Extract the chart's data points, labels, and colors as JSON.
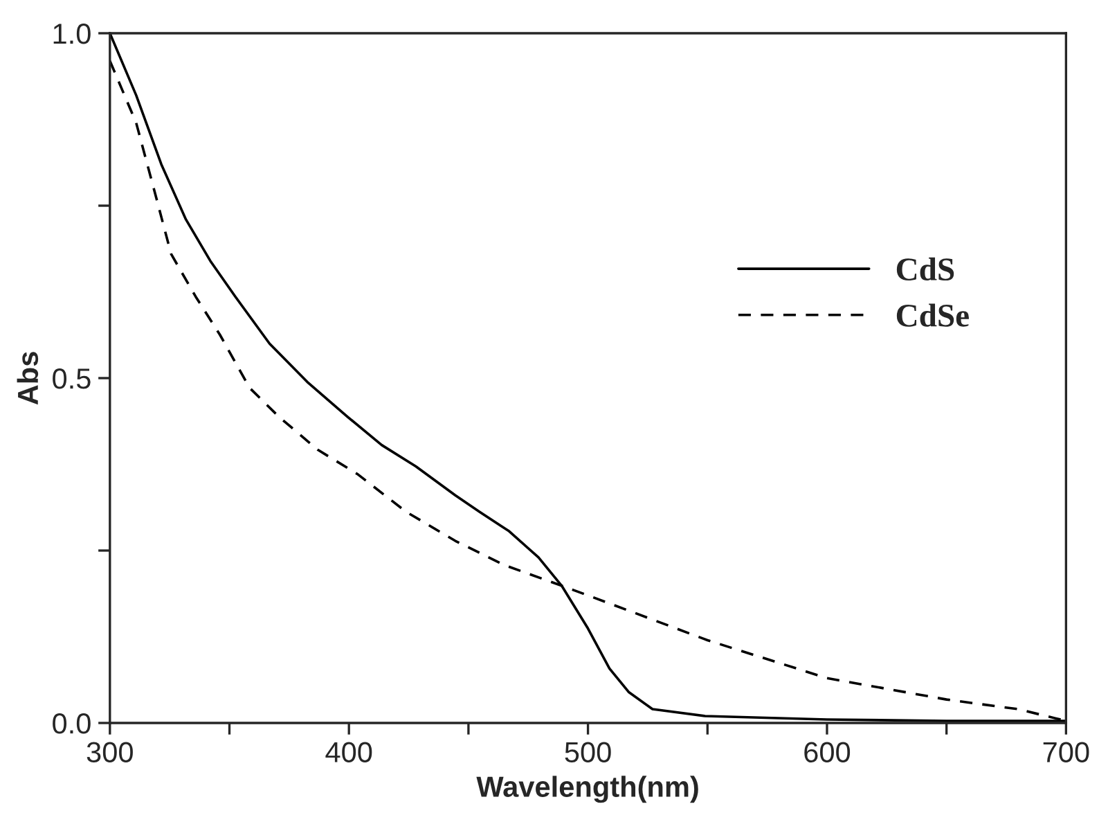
{
  "chart_data": {
    "type": "line",
    "xlabel": "Wavelength(nm)",
    "ylabel": "Abs",
    "xlim": [
      300,
      700
    ],
    "ylim": [
      0,
      1.0
    ],
    "xticks": [
      300,
      {
        "value": 350,
        "label": null
      },
      400,
      {
        "value": 450,
        "label": null
      },
      500,
      {
        "value": 550,
        "label": null
      },
      600,
      {
        "value": 650,
        "label": null
      },
      700
    ],
    "yticks": [
      {
        "value": 0,
        "label": "0.0"
      },
      {
        "value": 0.25,
        "label": null
      },
      0.5,
      {
        "value": 0.75,
        "label": null
      },
      {
        "value": 1.0,
        "label": "1.0"
      }
    ],
    "legend": "right",
    "grid": false,
    "series": [
      {
        "name": "CdS",
        "color": "#000000",
        "line_style": "solid",
        "x": [
          300,
          311,
          321.5,
          331.8,
          342,
          352.5,
          366.8,
          383,
          399.4,
          413.7,
          428,
          444.5,
          454.7,
          467,
          479.3,
          489,
          500,
          509,
          517,
          527,
          549,
          600,
          650,
          700
        ],
        "values": [
          1.0,
          0.91,
          0.81,
          0.73,
          0.67,
          0.618,
          0.55,
          0.493,
          0.444,
          0.403,
          0.372,
          0.33,
          0.306,
          0.278,
          0.24,
          0.199,
          0.137,
          0.079,
          0.045,
          0.02,
          0.01,
          0.005,
          0.003,
          0.003
        ]
      },
      {
        "name": "CdSe",
        "color": "#000000",
        "line_style": "dashed",
        "x": [
          300,
          311,
          319.5,
          325.6,
          335.9,
          346,
          358.4,
          370.7,
          387,
          403.5,
          424,
          444.5,
          465,
          489,
          500,
          550,
          600,
          650,
          680,
          700
        ],
        "values": [
          0.96,
          0.87,
          0.76,
          0.68,
          0.618,
          0.563,
          0.486,
          0.444,
          0.396,
          0.361,
          0.306,
          0.264,
          0.229,
          0.199,
          0.185,
          0.12,
          0.065,
          0.034,
          0.02,
          0.003
        ]
      }
    ]
  }
}
